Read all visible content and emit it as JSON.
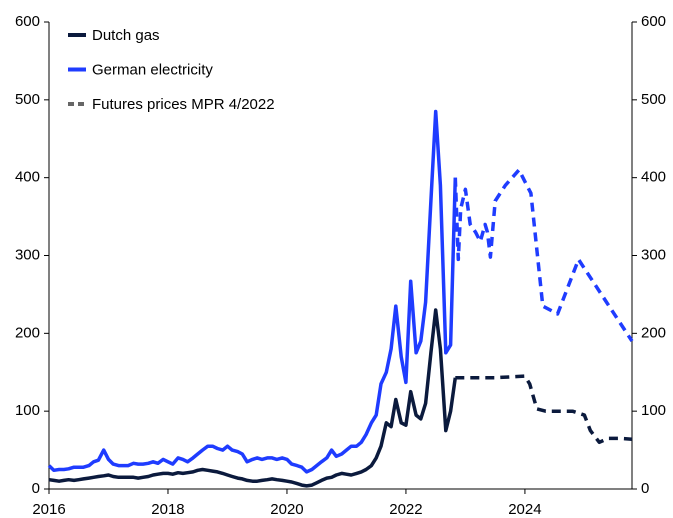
{
  "chart_data": {
    "type": "line",
    "xlim": [
      2016,
      2025.8
    ],
    "xticks": [
      2016,
      2018,
      2020,
      2022,
      2024
    ],
    "ylim": [
      0,
      600
    ],
    "yticks": [
      0,
      100,
      200,
      300,
      400,
      500,
      600
    ],
    "y2lim": [
      0,
      600
    ],
    "y2ticks": [
      0,
      100,
      200,
      300,
      400,
      500,
      600
    ],
    "legend": "upper left",
    "x": [
      2016,
      2016.08,
      2016.17,
      2016.25,
      2016.33,
      2016.42,
      2016.5,
      2016.58,
      2016.67,
      2016.75,
      2016.83,
      2016.92,
      2017,
      2017.08,
      2017.17,
      2017.25,
      2017.33,
      2017.42,
      2017.5,
      2017.58,
      2017.67,
      2017.75,
      2017.83,
      2017.92,
      2018,
      2018.08,
      2018.17,
      2018.25,
      2018.33,
      2018.42,
      2018.5,
      2018.58,
      2018.67,
      2018.75,
      2018.83,
      2018.92,
      2019,
      2019.08,
      2019.17,
      2019.25,
      2019.33,
      2019.42,
      2019.5,
      2019.58,
      2019.67,
      2019.75,
      2019.83,
      2019.92,
      2020,
      2020.08,
      2020.17,
      2020.25,
      2020.33,
      2020.42,
      2020.5,
      2020.58,
      2020.67,
      2020.75,
      2020.83,
      2020.92,
      2021,
      2021.08,
      2021.17,
      2021.25,
      2021.33,
      2021.42,
      2021.5,
      2021.58,
      2021.67,
      2021.75,
      2021.83,
      2021.92,
      2022,
      2022.08,
      2022.17,
      2022.25,
      2022.33,
      2022.42,
      2022.5,
      2022.58,
      2022.67,
      2022.75,
      2022.83
    ],
    "series": [
      {
        "name": "Dutch gas",
        "color": "#0b1a3d",
        "values": [
          12,
          11,
          10,
          11,
          12,
          11,
          12,
          13,
          14,
          15,
          16,
          17,
          18,
          16,
          15,
          15,
          15,
          15,
          14,
          15,
          16,
          18,
          19,
          20,
          20,
          19,
          21,
          20,
          21,
          22,
          24,
          25,
          24,
          23,
          22,
          20,
          18,
          16,
          14,
          13,
          11,
          10,
          10,
          11,
          12,
          13,
          12,
          11,
          10,
          9,
          7,
          5,
          4,
          5,
          8,
          11,
          14,
          15,
          18,
          20,
          19,
          18,
          20,
          22,
          25,
          30,
          40,
          55,
          85,
          80,
          115,
          85,
          82,
          125,
          95,
          90,
          110,
          175,
          230,
          180,
          75,
          100,
          143
        ]
      },
      {
        "name": "German electricity",
        "color": "#1f3cff",
        "values": [
          30,
          24,
          25,
          25,
          26,
          28,
          28,
          28,
          30,
          35,
          37,
          50,
          38,
          32,
          30,
          30,
          30,
          33,
          32,
          32,
          33,
          35,
          33,
          38,
          35,
          32,
          40,
          38,
          35,
          40,
          45,
          50,
          55,
          55,
          52,
          50,
          55,
          50,
          48,
          45,
          35,
          38,
          40,
          38,
          40,
          40,
          38,
          40,
          38,
          32,
          30,
          28,
          22,
          25,
          30,
          35,
          40,
          50,
          42,
          45,
          50,
          55,
          55,
          60,
          70,
          85,
          95,
          135,
          150,
          180,
          235,
          170,
          137,
          267,
          175,
          190,
          240,
          370,
          485,
          390,
          175,
          185,
          400
        ]
      }
    ],
    "futures": {
      "name": "Futures prices MPR 4/2022",
      "color": "#666666",
      "series": [
        {
          "color": "#0b1a3d",
          "x": [
            2022.83,
            2023,
            2023.5,
            2024,
            2024.08,
            2024.2,
            2024.35,
            2024.5,
            2024.8,
            2025,
            2025.1,
            2025.25,
            2025.4,
            2025.6,
            2025.8
          ],
          "values": [
            143,
            143,
            143,
            145,
            135,
            103,
            100,
            100,
            100,
            95,
            75,
            60,
            65,
            65,
            64
          ]
        },
        {
          "color": "#1f3cff",
          "x": [
            2022.83,
            2022.88,
            2022.92,
            2023,
            2023.08,
            2023.17,
            2023.25,
            2023.33,
            2023.37,
            2023.42,
            2023.5,
            2023.67,
            2023.9,
            2024,
            2024.1,
            2024.3,
            2024.55,
            2024.9,
            2025.8
          ],
          "values": [
            400,
            295,
            360,
            385,
            340,
            330,
            318,
            340,
            330,
            298,
            370,
            390,
            410,
            395,
            380,
            235,
            225,
            295,
            190
          ]
        }
      ]
    }
  }
}
